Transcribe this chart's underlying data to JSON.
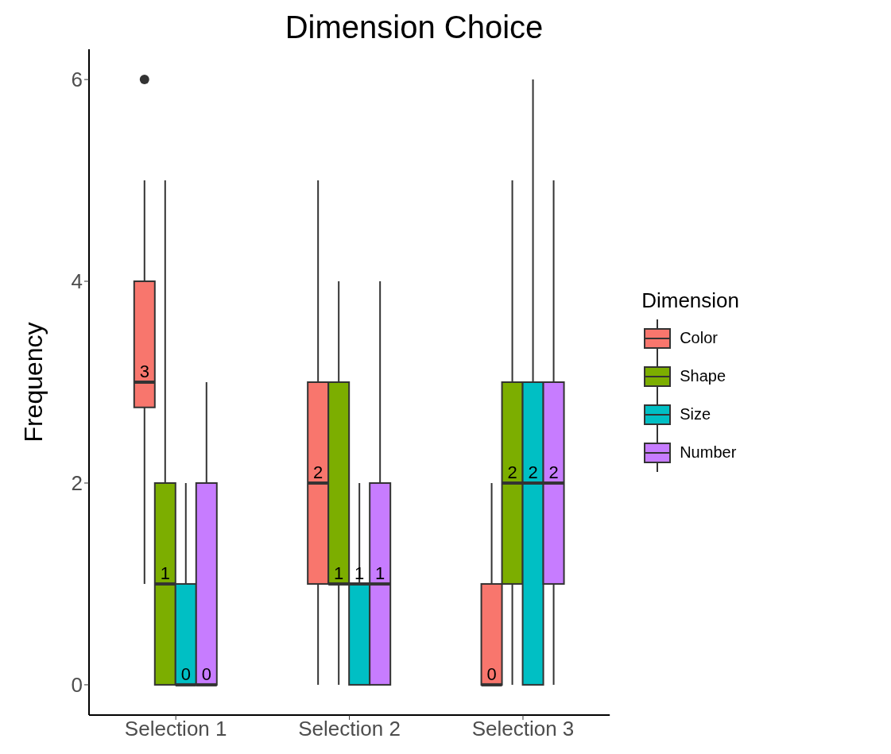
{
  "chart_data": {
    "type": "box",
    "title": "Dimension Choice",
    "xlabel": null,
    "ylabel": "Frequency",
    "legend_title": "Dimension",
    "categories": [
      "Selection 1",
      "Selection 2",
      "Selection 3"
    ],
    "series": [
      {
        "name": "Color",
        "color": "#f8766d",
        "value_labels": [
          "3",
          "2",
          "0"
        ],
        "boxes": [
          {
            "low": 1,
            "q1": 2.75,
            "median": 3,
            "q3": 4,
            "high": 5,
            "outliers": [
              6
            ]
          },
          {
            "low": 0,
            "q1": 1,
            "median": 2,
            "q3": 3,
            "high": 5
          },
          {
            "low": 0,
            "q1": 0,
            "median": 0,
            "q3": 1,
            "high": 2
          }
        ]
      },
      {
        "name": "Shape",
        "color": "#7cae00",
        "value_labels": [
          "1",
          "1",
          "2"
        ],
        "boxes": [
          {
            "low": 0,
            "q1": 0,
            "median": 1,
            "q3": 2,
            "high": 5
          },
          {
            "low": 0,
            "q1": 1,
            "median": 1,
            "q3": 3,
            "high": 4
          },
          {
            "low": 0,
            "q1": 1,
            "median": 2,
            "q3": 3,
            "high": 5
          }
        ]
      },
      {
        "name": "Size",
        "color": "#00bfc4",
        "value_labels": [
          "0",
          "1",
          "2"
        ],
        "boxes": [
          {
            "low": 0,
            "q1": 0,
            "median": 0,
            "q3": 1,
            "high": 2
          },
          {
            "low": 0,
            "q1": 0,
            "median": 1,
            "q3": 1,
            "high": 2
          },
          {
            "low": 0,
            "q1": 0,
            "median": 2,
            "q3": 3,
            "high": 6
          }
        ]
      },
      {
        "name": "Number",
        "color": "#c77cff",
        "value_labels": [
          "0",
          "1",
          "2"
        ],
        "boxes": [
          {
            "low": 0,
            "q1": 0,
            "median": 0,
            "q3": 2,
            "high": 3
          },
          {
            "low": 0,
            "q1": 0,
            "median": 1,
            "q3": 2,
            "high": 4
          },
          {
            "low": 0,
            "q1": 1,
            "median": 2,
            "q3": 3,
            "high": 5
          }
        ]
      }
    ],
    "ylim": [
      -0.3,
      6.3
    ],
    "yticks": [
      0,
      2,
      4,
      6
    ],
    "grid": false,
    "legend": "right"
  }
}
